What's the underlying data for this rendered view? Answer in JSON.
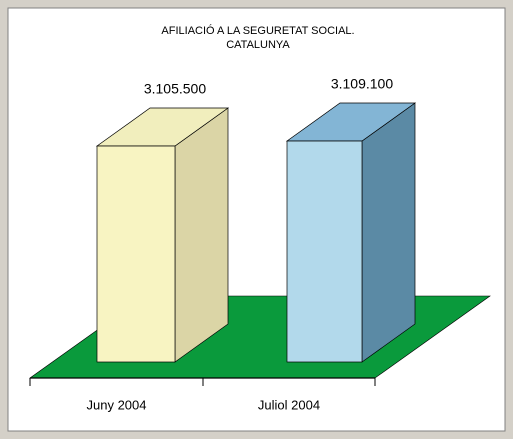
{
  "chart_data": {
    "type": "bar3d",
    "title": [
      "AFILIACIÓ A LA SEGURETAT SOCIAL.",
      "CATALUNYA"
    ],
    "categories": [
      "Juny 2004",
      "Juliol 2004"
    ],
    "values": [
      3105500,
      3109100
    ],
    "value_labels": [
      "3.105.500",
      "3.109.100"
    ],
    "colors": [
      {
        "front": "#f8f4c2",
        "side": "#dbd5a6",
        "top": "#f1eebd"
      },
      {
        "front": "#b2d9eb",
        "side": "#5b8aa5",
        "top": "#83b5d5"
      }
    ],
    "floor_color": "#0a9a3c",
    "ylim": [
      2950000,
      3130000
    ]
  }
}
